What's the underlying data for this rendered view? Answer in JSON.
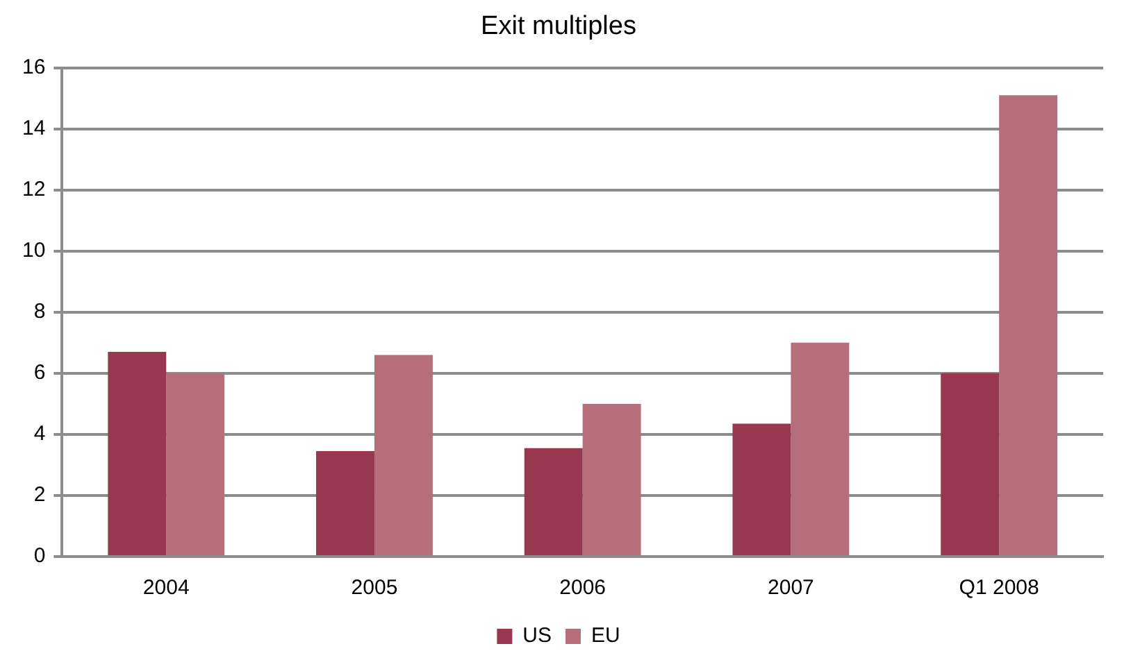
{
  "chart_data": {
    "type": "bar",
    "title": "Exit multiples",
    "categories": [
      "2004",
      "2005",
      "2006",
      "2007",
      "Q1 2008"
    ],
    "series": [
      {
        "name": "US",
        "color": "#973750",
        "values": [
          6.7,
          3.45,
          3.55,
          4.35,
          6.0
        ]
      },
      {
        "name": "EU",
        "color": "#b66f7a",
        "values": [
          6.0,
          6.6,
          5.0,
          7.0,
          15.1
        ]
      }
    ],
    "ylim": [
      0,
      16
    ],
    "yticks": [
      0,
      2,
      4,
      6,
      8,
      10,
      12,
      14,
      16
    ],
    "grid": "y",
    "legend": "bottom"
  }
}
